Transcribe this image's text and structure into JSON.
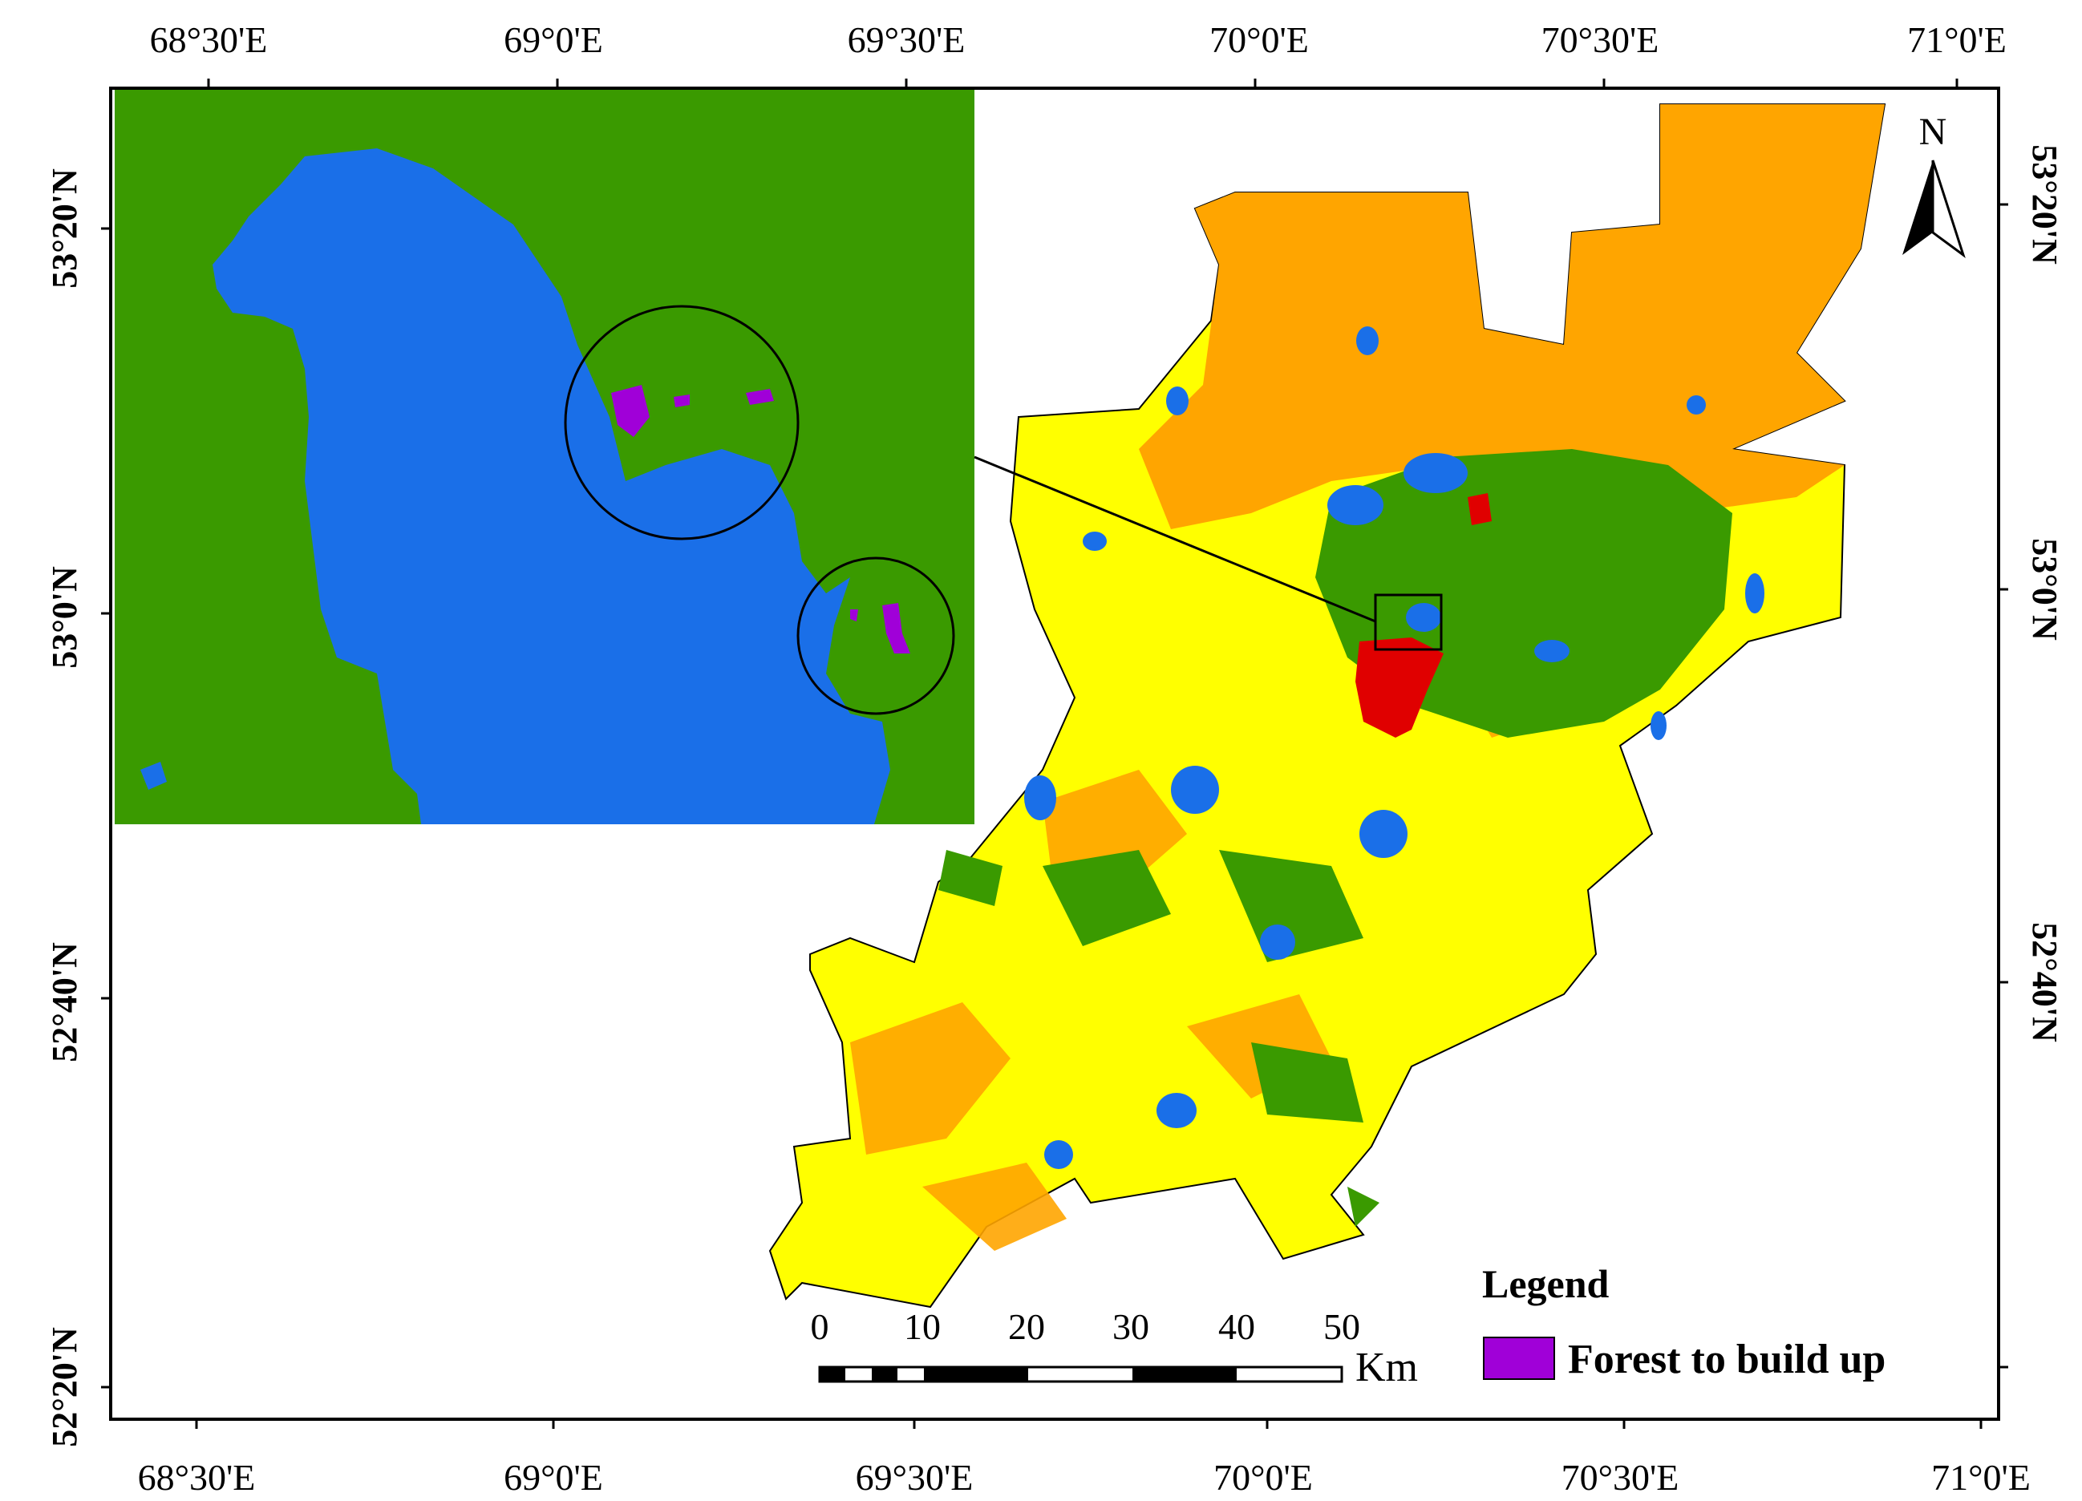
{
  "map": {
    "top_lon_labels": [
      "68°30'E",
      "69°0'E",
      "69°30'E",
      "70°0'E",
      "70°30'E",
      "71°0'E"
    ],
    "bottom_lon_labels": [
      "68°30'E",
      "69°0'E",
      "69°30'E",
      "70°0'E",
      "70°30'E",
      "71°0'E"
    ],
    "left_lat_labels": [
      "53°20'N",
      "53°0'N",
      "52°40'N",
      "52°20'N"
    ],
    "right_lat_labels": [
      "53°20'N",
      "53°0'N",
      "52°40'N"
    ],
    "north_label": "N",
    "colors": {
      "water": "#1a6fe8",
      "vegetation": "#3a9a00",
      "cropland": "#ffff00",
      "bare": "#ffa500",
      "built_up": "#e00000",
      "forest_to_build_up": "#a000d8"
    }
  },
  "scale_bar": {
    "ticks": [
      "0",
      "10",
      "20",
      "30",
      "40",
      "50"
    ],
    "unit": "Km"
  },
  "legend": {
    "title": "Legend",
    "items": [
      {
        "label": "Forest to build up",
        "color": "#a000d8"
      }
    ]
  }
}
